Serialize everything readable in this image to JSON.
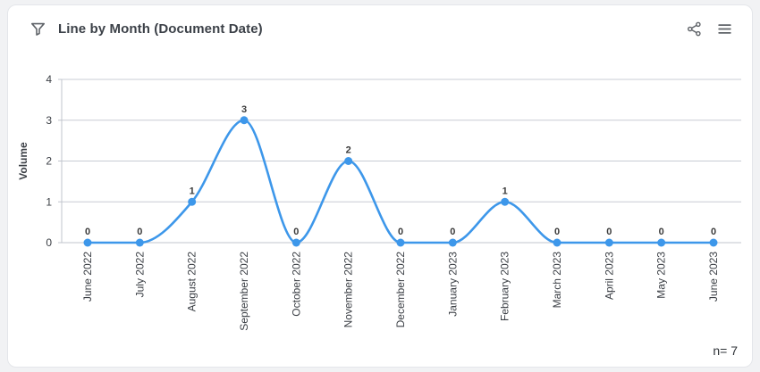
{
  "header": {
    "title": "Line by Month (Document Date)"
  },
  "footer": {
    "n_label": "n= 7"
  },
  "chart_data": {
    "type": "line",
    "title": "Line by Month (Document Date)",
    "categories": [
      "June 2022",
      "July 2022",
      "August 2022",
      "September 2022",
      "October 2022",
      "November 2022",
      "December 2022",
      "January 2023",
      "February 2023",
      "March 2023",
      "April 2023",
      "May 2023",
      "June 2023"
    ],
    "values": [
      0,
      0,
      1,
      3,
      0,
      2,
      0,
      0,
      1,
      0,
      0,
      0,
      0
    ],
    "xlabel": "",
    "ylabel": "Volume",
    "ylim": [
      0,
      4
    ],
    "yticks": [
      0,
      1,
      2,
      3,
      4
    ],
    "grid": true,
    "legend": "none",
    "point_labels": true,
    "n_total": 7,
    "colors": {
      "line": "#3d97ea",
      "point": "#3d97ea",
      "grid": "#c8ccd4",
      "axis": "#c0c4cc",
      "tick_text": "#3b3f45",
      "value_label": "#3a3a3a",
      "icon": "#5f6368"
    }
  }
}
